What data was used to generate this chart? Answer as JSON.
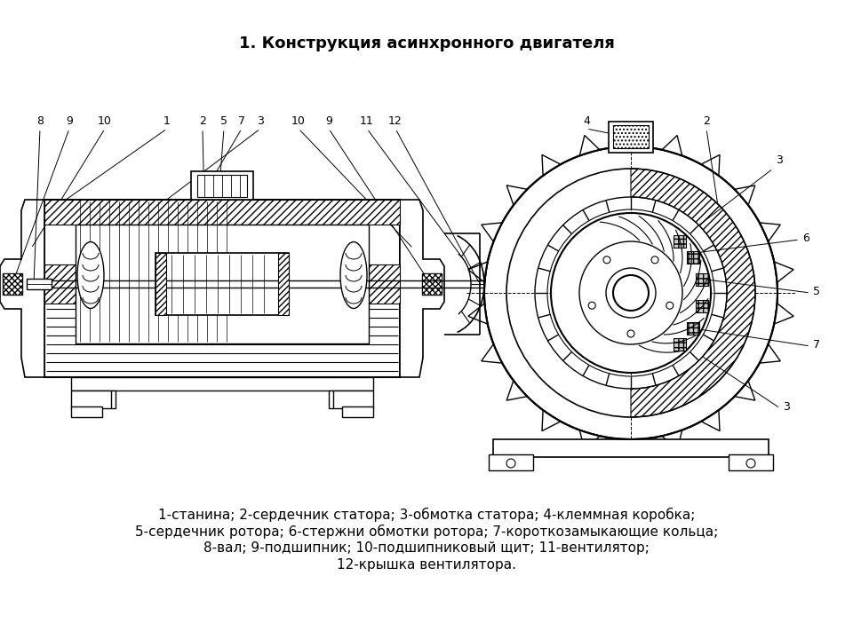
{
  "title": "1. Конструкция асинхронного двигателя",
  "title_fontsize": 13,
  "caption_lines": [
    "1-станина; 2-сердечник статора; 3-обмотка статора; 4-клеммная коробка;",
    "5-сердечник ротора; 6-стержни обмотки ротора; 7-короткозамыкающие кольца;",
    "8-вал; 9-подшипник; 10-подшипниковый щит; 11-вентилятор;",
    "12-крышка вентилятора."
  ],
  "caption_fontsize": 11,
  "bg_color": "#ffffff",
  "line_color": "#000000",
  "left_labels": [
    [
      "8",
      45,
      570
    ],
    [
      "9",
      80,
      570
    ],
    [
      "10",
      120,
      570
    ],
    [
      "1",
      190,
      570
    ],
    [
      "2",
      230,
      570
    ],
    [
      "5",
      252,
      570
    ],
    [
      "7",
      270,
      570
    ],
    [
      "3",
      290,
      570
    ],
    [
      "10",
      335,
      570
    ],
    [
      "9",
      370,
      570
    ],
    [
      "11",
      415,
      570
    ],
    [
      "12",
      445,
      570
    ]
  ],
  "right_labels": [
    [
      "4",
      660,
      135
    ],
    [
      "2",
      790,
      135
    ],
    [
      "3",
      870,
      195
    ],
    [
      "6",
      900,
      270
    ],
    [
      "5",
      910,
      340
    ],
    [
      "7",
      910,
      420
    ],
    [
      "3",
      880,
      490
    ]
  ]
}
